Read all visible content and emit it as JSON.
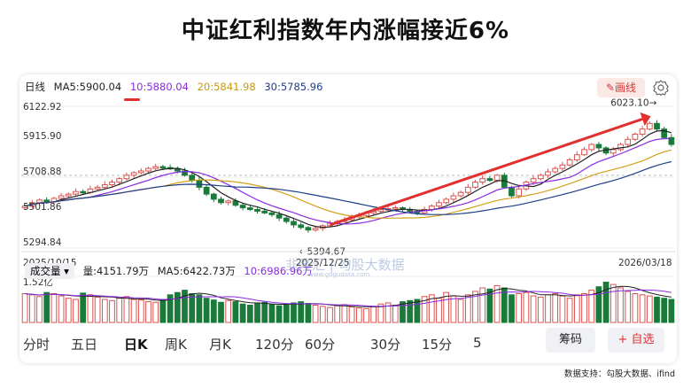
{
  "title": "中证红利指数年内涨幅接近6%",
  "ma": {
    "period": "日线",
    "ma5": "MA5:5900.04",
    "ma10": "10:5880.04",
    "ma20": "20:5841.98",
    "ma30": "30:5785.96",
    "draw_label": "✎画线",
    "colors": {
      "ma5": "#222222",
      "ma10": "#8a2be2",
      "ma20": "#d4a017",
      "ma30": "#1f3d8a",
      "up": "#d9534f",
      "down": "#1a7a3a",
      "arrow": "#e03030"
    }
  },
  "price_axis": [
    "6122.92",
    "5915.90",
    "5708.88",
    "5501.86",
    "5294.84"
  ],
  "date_axis": [
    "2025/10/15",
    "2025/12/25",
    "2026/03/18"
  ],
  "annotations": {
    "high": "6023.10→",
    "low": "←5394.67"
  },
  "volume": {
    "selector": "成交量 ▾",
    "vol": "量:4151.79万",
    "ma5": "MA5:6422.73万",
    "ma10": "10:6986.96万",
    "axis_top": "1.52亿"
  },
  "watermark": "韭隆汇 | 勾股大数据",
  "watermark_sub": "www.gogudata.com",
  "periods": [
    "分时",
    "五日",
    "日K",
    "周K",
    "月K",
    "120分",
    "60分",
    "30分",
    "15分",
    "5"
  ],
  "active_period": "日K",
  "buttons": {
    "chips": "筹码",
    "watchlist": "+ 自选"
  },
  "source": "数据支持：勾股大数据、ifind",
  "chart_data": {
    "type": "candlestick",
    "ylim": [
      5294.84,
      6122.92
    ],
    "close_series": [
      5540,
      5560,
      5575,
      5565,
      5585,
      5600,
      5610,
      5625,
      5620,
      5640,
      5650,
      5665,
      5680,
      5700,
      5720,
      5735,
      5745,
      5760,
      5770,
      5765,
      5760,
      5745,
      5720,
      5690,
      5650,
      5610,
      5580,
      5560,
      5570,
      5545,
      5530,
      5520,
      5510,
      5500,
      5490,
      5470,
      5450,
      5430,
      5415,
      5400,
      5410,
      5425,
      5440,
      5450,
      5460,
      5480,
      5485,
      5500,
      5510,
      5520,
      5525,
      5530,
      5520,
      5510,
      5500,
      5520,
      5540,
      5560,
      5580,
      5600,
      5620,
      5650,
      5680,
      5700,
      5690,
      5720,
      5650,
      5600,
      5640,
      5680,
      5700,
      5720,
      5740,
      5760,
      5780,
      5810,
      5840,
      5870,
      5900,
      5880,
      5850,
      5870,
      5900,
      5930,
      5960,
      5990,
      6023,
      5990,
      5940,
      5900
    ],
    "volume_series": [
      5.0,
      4.8,
      4.5,
      5.2,
      5.0,
      4.6,
      4.2,
      4.0,
      5.1,
      4.8,
      4.4,
      4.0,
      3.8,
      4.2,
      4.5,
      4.0,
      3.9,
      3.6,
      3.5,
      4.0,
      4.8,
      5.2,
      5.6,
      5.0,
      4.8,
      4.2,
      3.9,
      3.5,
      3.8,
      3.6,
      3.2,
      3.0,
      3.3,
      3.5,
      3.1,
      2.9,
      3.0,
      3.4,
      3.6,
      3.3,
      3.0,
      2.8,
      2.6,
      2.9,
      3.1,
      2.7,
      2.5,
      2.4,
      2.8,
      3.2,
      3.4,
      3.0,
      3.6,
      3.8,
      4.0,
      4.5,
      4.8,
      4.2,
      5.2,
      4.6,
      4.0,
      4.8,
      5.4,
      6.0,
      5.8,
      6.4,
      6.0,
      4.8,
      5.0,
      5.2,
      4.6,
      4.4,
      4.8,
      5.0,
      4.6,
      4.2,
      4.8,
      5.0,
      5.6,
      6.2,
      7.0,
      6.6,
      6.0,
      5.4,
      5.0,
      4.8,
      4.6,
      4.4,
      4.2,
      4.0
    ]
  }
}
